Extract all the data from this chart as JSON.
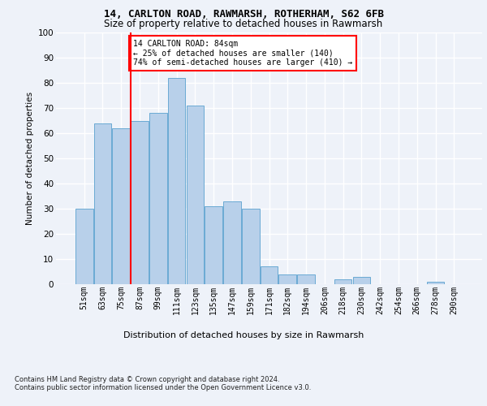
{
  "title1": "14, CARLTON ROAD, RAWMARSH, ROTHERHAM, S62 6FB",
  "title2": "Size of property relative to detached houses in Rawmarsh",
  "xlabel": "Distribution of detached houses by size in Rawmarsh",
  "ylabel": "Number of detached properties",
  "bar_labels": [
    "51sqm",
    "63sqm",
    "75sqm",
    "87sqm",
    "99sqm",
    "111sqm",
    "123sqm",
    "135sqm",
    "147sqm",
    "159sqm",
    "171sqm",
    "182sqm",
    "194sqm",
    "206sqm",
    "218sqm",
    "230sqm",
    "242sqm",
    "254sqm",
    "266sqm",
    "278sqm",
    "290sqm"
  ],
  "bar_values": [
    30,
    64,
    62,
    65,
    68,
    82,
    71,
    31,
    33,
    30,
    7,
    4,
    4,
    0,
    2,
    3,
    0,
    0,
    0,
    1,
    0
  ],
  "bar_color": "#b8d0ea",
  "bar_edge_color": "#6aaad4",
  "red_line_index": 2.5,
  "annotation_line1": "14 CARLTON ROAD: 84sqm",
  "annotation_line2": "← 25% of detached houses are smaller (140)",
  "annotation_line3": "74% of semi-detached houses are larger (410) →",
  "ylim": [
    0,
    100
  ],
  "yticks": [
    0,
    10,
    20,
    30,
    40,
    50,
    60,
    70,
    80,
    90,
    100
  ],
  "footer1": "Contains HM Land Registry data © Crown copyright and database right 2024.",
  "footer2": "Contains public sector information licensed under the Open Government Licence v3.0.",
  "bg_color": "#eef2f9",
  "plot_bg_color": "#eef2f9",
  "grid_color": "#ffffff"
}
